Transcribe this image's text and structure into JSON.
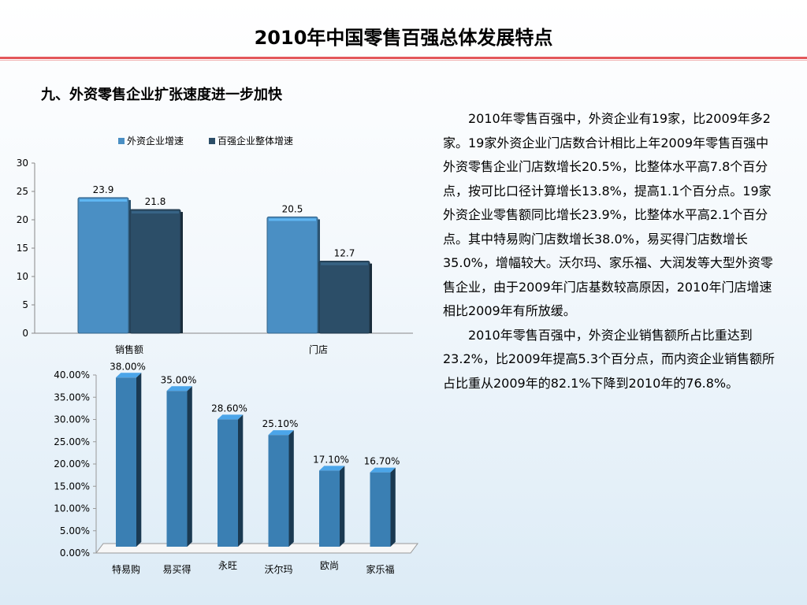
{
  "slide": {
    "title": "2010年中国零售百强总体发展特点",
    "section_heading": "九、外资零售企业扩张速度进一步加快",
    "paragraphs": [
      "2010年零售百强中，外资企业有19家，比2009年多2家。19家外资企业门店数合计相比上年2009年零售百强中外资零售企业门店数增长20.5%，比整体水平高7.8个百分点，按可比口径计算增长13.8%，提高1.1个百分点。19家外资企业零售额同比增长23.9%，比整体水平高2.1个百分点。其中特易购门店数增长38.0%，易买得门店数增长35.0%，增幅较大。沃尔玛、家乐福、大润发等大型外资零售企业，由于2009年门店基数较高原因，2010年门店增速相比2009年有所放缓。",
      "2010年零售百强中，外资企业销售额所占比重达到23.2%，比2009年提高5.3个百分点，而内资企业销售额所占比重从2009年的82.1%下降到2010年的76.8%。"
    ]
  },
  "chart_data": [
    {
      "type": "bar",
      "title": "",
      "categories": [
        "销售额",
        "门店"
      ],
      "series": [
        {
          "name": "外资企业增速",
          "values": [
            23.9,
            20.5
          ],
          "color": "#4a8fc4"
        },
        {
          "name": "百强企业整体增速",
          "values": [
            21.8,
            12.7
          ],
          "color": "#2c4e68"
        }
      ],
      "value_labels": [
        [
          "23.9",
          "20.5"
        ],
        [
          "21.8",
          "12.7"
        ]
      ],
      "ylim": [
        0,
        30
      ],
      "yticks": [
        "0",
        "5",
        "10",
        "15",
        "20",
        "25",
        "30"
      ],
      "legend": "top",
      "grid": false
    },
    {
      "type": "bar",
      "title": "",
      "categories": [
        "特易购",
        "易买得",
        "永旺",
        "沃尔玛",
        "欧尚",
        "家乐福"
      ],
      "values": [
        38.0,
        35.0,
        28.6,
        25.1,
        17.1,
        16.7
      ],
      "value_labels": [
        "38.00%",
        "35.00%",
        "28.60%",
        "25.10%",
        "17.10%",
        "16.70%"
      ],
      "ylim": [
        0,
        40
      ],
      "yticks": [
        "0.00%",
        "5.00%",
        "10.00%",
        "15.00%",
        "20.00%",
        "25.00%",
        "30.00%",
        "35.00%",
        "40.00%"
      ],
      "color": "#3a7fb3",
      "grid": false
    }
  ]
}
